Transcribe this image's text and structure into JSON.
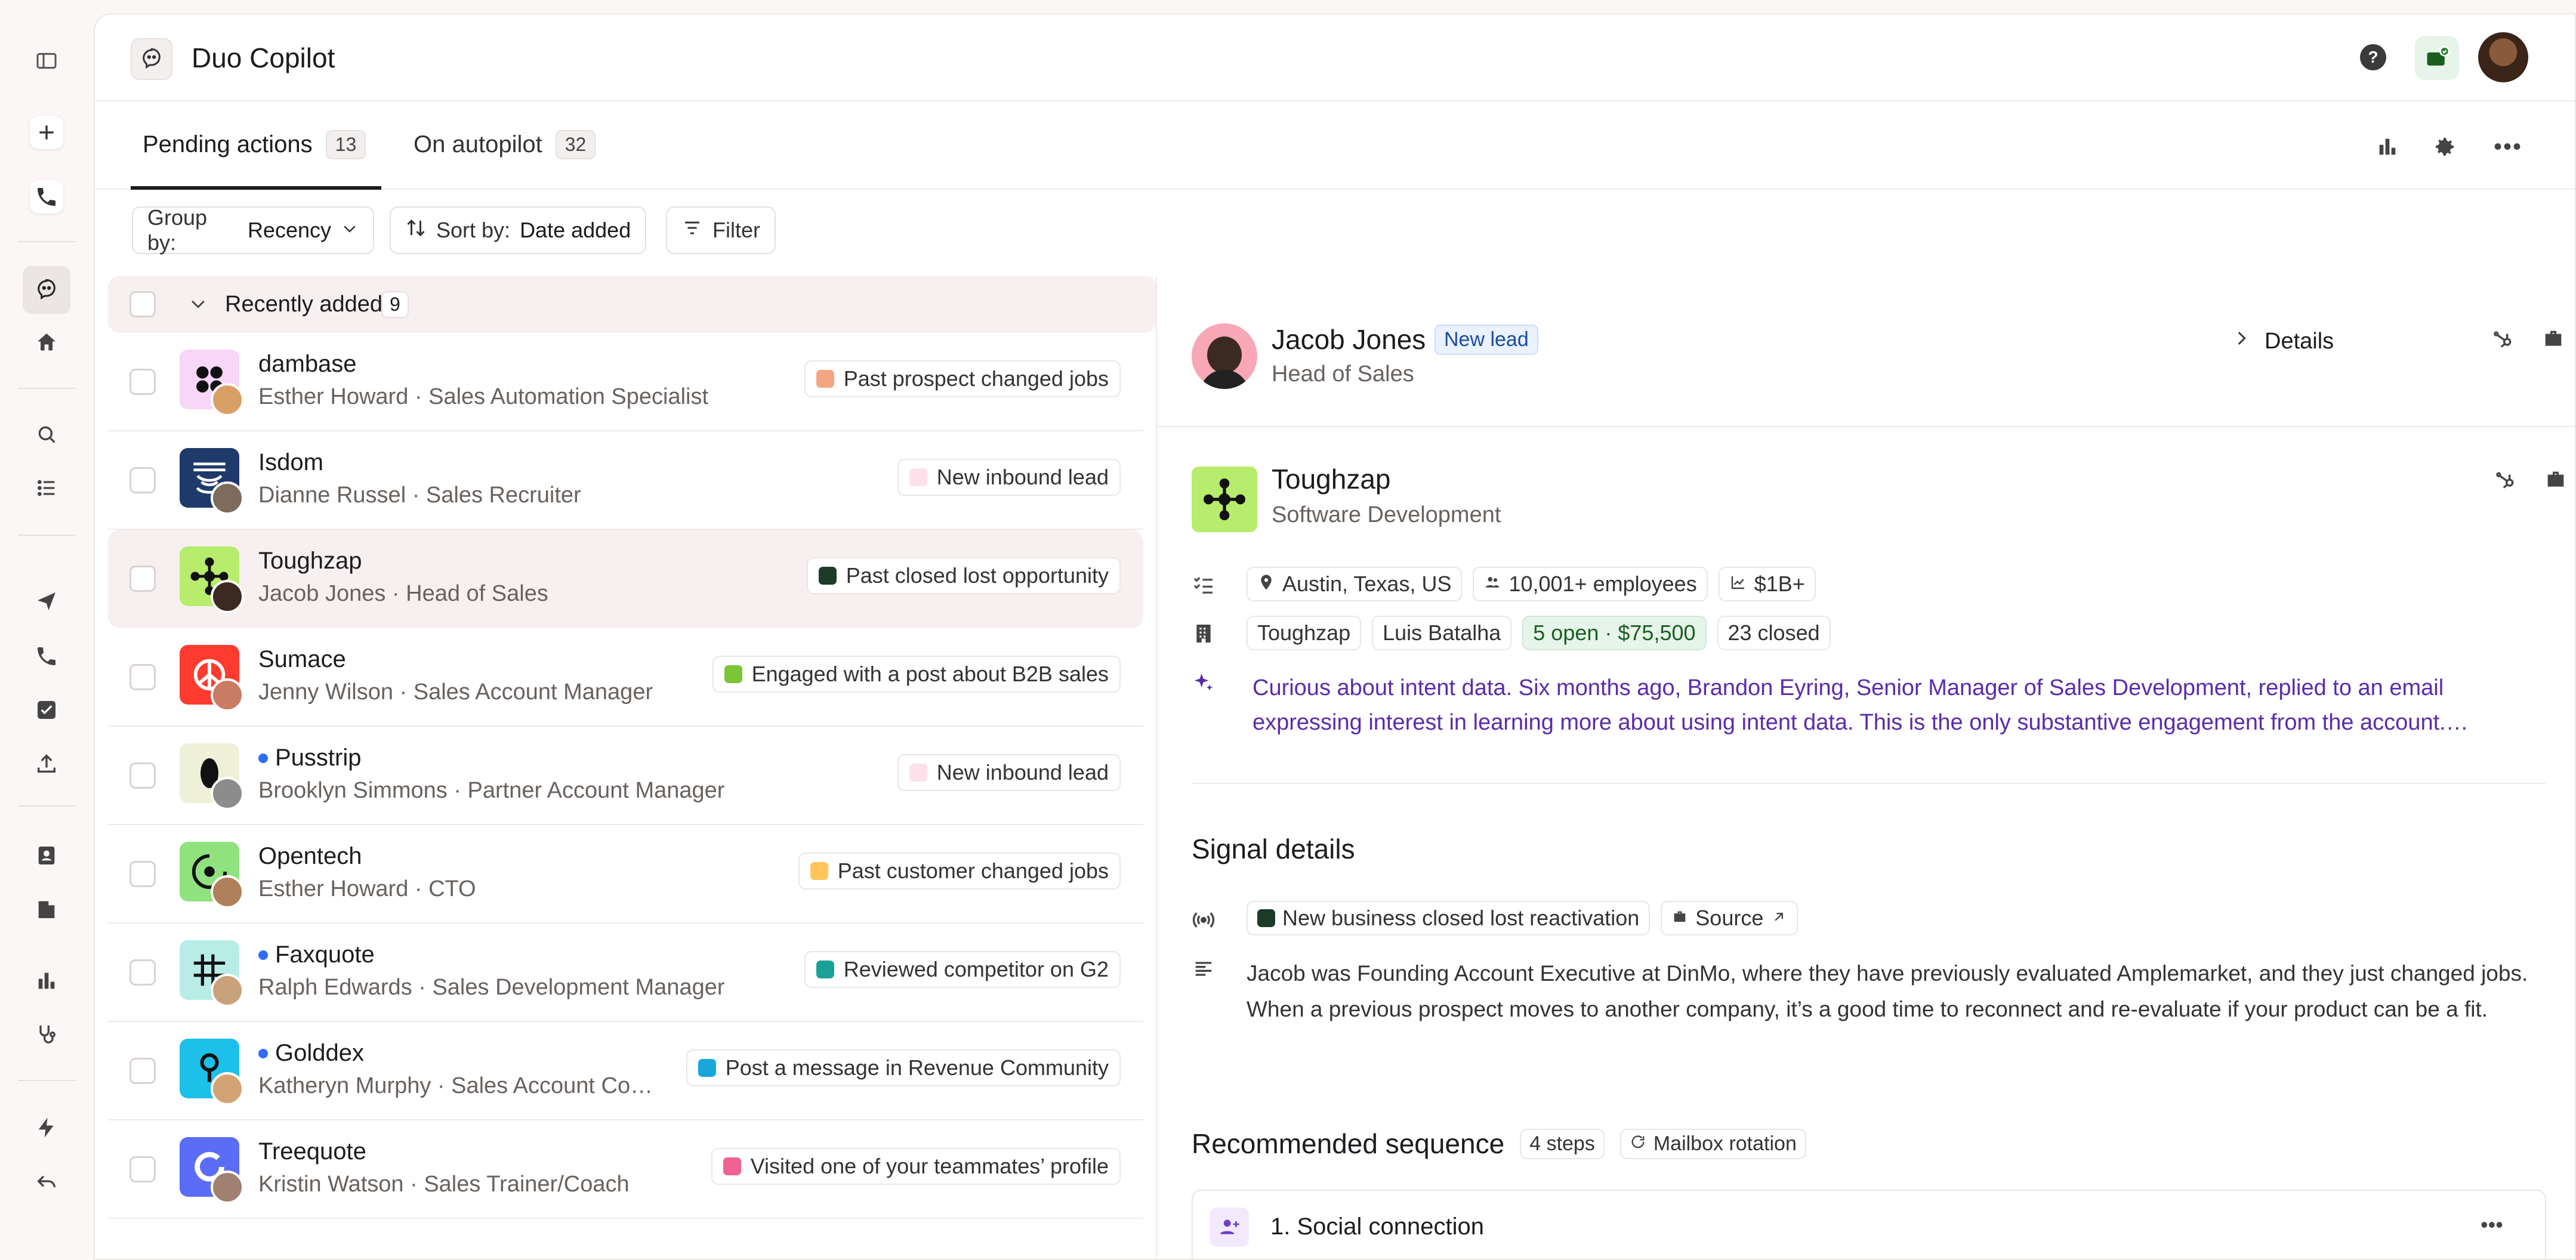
{
  "app": {
    "title": "Duo Copilot"
  },
  "colors": {
    "accent": "#1c1b1f",
    "unread_dot": "#2f6bff",
    "insight_text": "#5b2bab",
    "open_chip": "#e6f4ea"
  },
  "rail_icons": [
    "sidebar-toggle-icon",
    "plus-icon",
    "phone-icon",
    "copilot-icon",
    "home-icon",
    "search-icon",
    "list-icon",
    "send-icon",
    "phone-icon",
    "checkbox-icon",
    "upload-icon",
    "contacts-icon",
    "building-icon",
    "bar-chart-icon",
    "stethoscope-icon",
    "bolt-icon",
    "reply-icon"
  ],
  "tabs": [
    {
      "label": "Pending actions",
      "count": "13"
    },
    {
      "label": "On autopilot",
      "count": "32"
    }
  ],
  "toolbar": {
    "group_prefix": "Group by:",
    "group_value": "Recency",
    "sort_prefix": "Sort by:",
    "sort_value": "Date added",
    "filter": "Filter"
  },
  "group": {
    "label": "Recently added",
    "count": "9"
  },
  "rows": [
    {
      "company": "dambase",
      "person": "Esther Howard · Sales Automation Specialist",
      "signal": "Past prospect changed jobs",
      "swatch": "#f4a582",
      "unread": false,
      "logo_bg": "#f7d6f7"
    },
    {
      "company": "Isdom",
      "person": "Dianne Russel · Sales Recruiter",
      "signal": "New inbound lead",
      "swatch": "#fde0ea",
      "unread": false,
      "logo_bg": "#1e3a6b"
    },
    {
      "company": "Toughzap",
      "person": "Jacob Jones · Head of Sales",
      "signal": "Past closed lost opportunity",
      "swatch": "#1e3b2a",
      "unread": false,
      "logo_bg": "#b7ec6c"
    },
    {
      "company": "Sumace",
      "person": "Jenny Wilson · Sales Account Manager",
      "signal": "Engaged with a post about B2B sales",
      "swatch": "#7cc537",
      "unread": false,
      "logo_bg": "#ff3b2f"
    },
    {
      "company": "Pusstrip",
      "person": "Brooklyn Simmons · Partner Account Manager",
      "signal": "New inbound lead",
      "swatch": "#fde0ea",
      "unread": true,
      "logo_bg": "#eef0d8"
    },
    {
      "company": "Opentech",
      "person": "Esther Howard · CTO",
      "signal": "Past customer changed jobs",
      "swatch": "#ffc55c",
      "unread": false,
      "logo_bg": "#8fe27e"
    },
    {
      "company": "Faxquote",
      "person": "Ralph Edwards · Sales Development Manager",
      "signal": "Reviewed competitor on G2",
      "swatch": "#1aa198",
      "unread": true,
      "logo_bg": "#b8ece6"
    },
    {
      "company": "Golddex",
      "person": "Katheryn Murphy · Sales Account Co…",
      "signal": "Post a message in Revenue Community",
      "swatch": "#19a7db",
      "unread": true,
      "logo_bg": "#1cc0e8"
    },
    {
      "company": "Treequote",
      "person": "Kristin Watson · Sales Trainer/Coach",
      "signal": "Visited one of your teammates’ profile",
      "swatch": "#f06292",
      "unread": false,
      "logo_bg": "#5b6cf6"
    }
  ],
  "detail": {
    "name": "Jacob Jones",
    "badge": "New lead",
    "title": "Head of Sales",
    "details_label": "Details",
    "company": "Toughzap",
    "industry": "Software Development",
    "location": "Austin, Texas, US",
    "employees": "10,001+ employees",
    "revenue": "$1B+",
    "crm_account": "Toughzap",
    "crm_owner": "Luis Batalha",
    "crm_open": "5 open · $75,500",
    "crm_closed": "23 closed",
    "insight_line1": "Curious about intent data. Six months ago, Brandon Eyring, Senior Manager of Sales Development, replied to an email",
    "insight_line2": "expressing interest in learning more about using intent data. This is the only substantive engagement from the account.…",
    "signal_heading": "Signal details",
    "signal_chip": "New business closed lost reactivation",
    "source_chip": "Source",
    "signal_text1": "Jacob was Founding Account Executive at DinMo, where they have previously evaluated Amplemarket, and they just changed jobs.",
    "signal_text2": "When a previous prospect moves to another company, it’s a good time to reconnect and re-evaluate if your product can be a fit.",
    "seq_heading": "Recommended sequence",
    "seq_steps": "4 steps",
    "seq_mailbox": "Mailbox rotation",
    "step1": "1. Social connection"
  }
}
